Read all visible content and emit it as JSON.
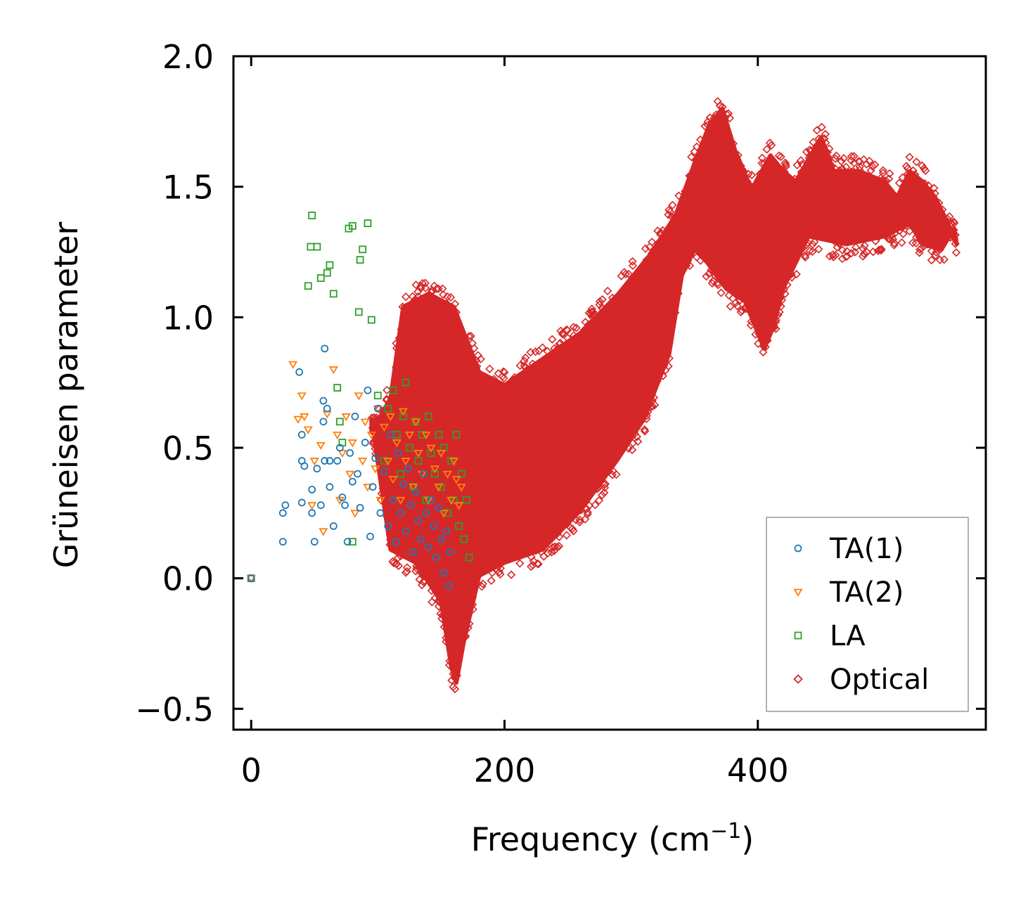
{
  "chart_data": {
    "type": "scatter",
    "title": "",
    "xlabel": "Frequency (cm",
    "xlabel_sup": "−1",
    "xlabel_close": ")",
    "ylabel": "Grüneisen parameter",
    "xlim": [
      -14,
      580
    ],
    "ylim": [
      -0.58,
      2.0
    ],
    "xticks": [
      0,
      200,
      400
    ],
    "xtick_labels": [
      "0",
      "200",
      "400"
    ],
    "yticks": [
      -0.5,
      0.0,
      0.5,
      1.0,
      1.5,
      2.0
    ],
    "ytick_labels": [
      "−0.5",
      "0.0",
      "0.5",
      "1.0",
      "1.5",
      "2.0"
    ],
    "legend_position": "lower-right",
    "series": [
      {
        "name": "TA(1)",
        "marker": "circle",
        "color": "#1f77b4",
        "points": [
          [
            0,
            0
          ],
          [
            25,
            0.14
          ],
          [
            27,
            0.28
          ],
          [
            25,
            0.25
          ],
          [
            38,
            0.79
          ],
          [
            40,
            0.55
          ],
          [
            40,
            0.45
          ],
          [
            42,
            0.43
          ],
          [
            40,
            0.29
          ],
          [
            48,
            0.34
          ],
          [
            48,
            0.25
          ],
          [
            50,
            0.14
          ],
          [
            52,
            0.42
          ],
          [
            55,
            0.28
          ],
          [
            57,
            0.68
          ],
          [
            58,
            0.88
          ],
          [
            57,
            0.6
          ],
          [
            58,
            0.45
          ],
          [
            60,
            0.65
          ],
          [
            62,
            0.45
          ],
          [
            62,
            0.35
          ],
          [
            65,
            0.2
          ],
          [
            68,
            0.45
          ],
          [
            70,
            0.5
          ],
          [
            72,
            0.31
          ],
          [
            74,
            0.28
          ],
          [
            76,
            0.14
          ],
          [
            78,
            0.48
          ],
          [
            80,
            0.37
          ],
          [
            82,
            0.62
          ],
          [
            84,
            0.4
          ],
          [
            86,
            0.27
          ],
          [
            90,
            0.52
          ],
          [
            92,
            0.72
          ],
          [
            94,
            0.16
          ],
          [
            96,
            0.35
          ],
          [
            98,
            0.46
          ],
          [
            100,
            0.65
          ],
          [
            102,
            0.25
          ],
          [
            105,
            0.41
          ],
          [
            108,
            0.2
          ],
          [
            110,
            0.55
          ],
          [
            112,
            0.3
          ],
          [
            114,
            0.14
          ],
          [
            116,
            0.48
          ],
          [
            118,
            0.25
          ],
          [
            120,
            0.36
          ],
          [
            122,
            0.18
          ],
          [
            124,
            0.42
          ],
          [
            126,
            0.28
          ],
          [
            128,
            0.1
          ],
          [
            130,
            0.33
          ],
          [
            132,
            0.22
          ],
          [
            134,
            0.15
          ],
          [
            136,
            0.4
          ],
          [
            138,
            0.25
          ],
          [
            140,
            0.12
          ],
          [
            142,
            0.3
          ],
          [
            144,
            0.2
          ],
          [
            146,
            0.08
          ],
          [
            148,
            0.27
          ],
          [
            150,
            0.15
          ],
          [
            152,
            0.02
          ],
          [
            154,
            0.18
          ],
          [
            156,
            -0.03
          ],
          [
            157,
            0.1
          ]
        ]
      },
      {
        "name": "TA(2)",
        "marker": "triangle-down",
        "color": "#ff7f0e",
        "points": [
          [
            0,
            0
          ],
          [
            33,
            0.82
          ],
          [
            37,
            0.61
          ],
          [
            40,
            0.7
          ],
          [
            42,
            0.62
          ],
          [
            45,
            0.57
          ],
          [
            48,
            0.28
          ],
          [
            50,
            0.45
          ],
          [
            55,
            0.51
          ],
          [
            57,
            0.18
          ],
          [
            60,
            0.63
          ],
          [
            65,
            0.8
          ],
          [
            68,
            0.55
          ],
          [
            70,
            0.3
          ],
          [
            72,
            0.48
          ],
          [
            75,
            0.62
          ],
          [
            78,
            0.4
          ],
          [
            80,
            0.52
          ],
          [
            82,
            0.25
          ],
          [
            85,
            0.7
          ],
          [
            88,
            0.45
          ],
          [
            90,
            0.6
          ],
          [
            92,
            0.35
          ],
          [
            95,
            0.55
          ],
          [
            98,
            0.42
          ],
          [
            100,
            0.65
          ],
          [
            102,
            0.3
          ],
          [
            105,
            0.58
          ],
          [
            108,
            0.45
          ],
          [
            110,
            0.62
          ],
          [
            112,
            0.38
          ],
          [
            115,
            0.52
          ],
          [
            118,
            0.3
          ],
          [
            120,
            0.64
          ],
          [
            122,
            0.45
          ],
          [
            125,
            0.55
          ],
          [
            128,
            0.35
          ],
          [
            130,
            0.6
          ],
          [
            132,
            0.48
          ],
          [
            135,
            0.4
          ],
          [
            138,
            0.55
          ],
          [
            140,
            0.3
          ],
          [
            142,
            0.5
          ],
          [
            145,
            0.42
          ],
          [
            148,
            0.35
          ],
          [
            150,
            0.48
          ],
          [
            152,
            0.25
          ],
          [
            155,
            0.4
          ],
          [
            158,
            0.3
          ],
          [
            160,
            0.45
          ],
          [
            162,
            0.38
          ],
          [
            164,
            0.28
          ],
          [
            166,
            0.35
          ]
        ]
      },
      {
        "name": "LA",
        "marker": "square",
        "color": "#2ca02c",
        "points": [
          [
            0,
            0
          ],
          [
            45,
            1.12
          ],
          [
            47,
            1.27
          ],
          [
            48,
            1.39
          ],
          [
            52,
            1.27
          ],
          [
            55,
            1.15
          ],
          [
            60,
            1.17
          ],
          [
            62,
            1.2
          ],
          [
            65,
            1.09
          ],
          [
            68,
            0.73
          ],
          [
            70,
            0.6
          ],
          [
            72,
            0.52
          ],
          [
            77,
            1.34
          ],
          [
            80,
            1.35
          ],
          [
            80,
            0.14
          ],
          [
            85,
            1.02
          ],
          [
            86,
            1.22
          ],
          [
            88,
            1.26
          ],
          [
            92,
            1.36
          ],
          [
            95,
            0.99
          ],
          [
            100,
            0.7
          ],
          [
            105,
            0.45
          ],
          [
            108,
            0.65
          ],
          [
            112,
            0.72
          ],
          [
            115,
            0.55
          ],
          [
            118,
            0.4
          ],
          [
            120,
            0.62
          ],
          [
            122,
            0.75
          ],
          [
            125,
            0.5
          ],
          [
            128,
            0.35
          ],
          [
            130,
            0.6
          ],
          [
            132,
            0.45
          ],
          [
            135,
            0.55
          ],
          [
            138,
            0.3
          ],
          [
            140,
            0.62
          ],
          [
            142,
            0.48
          ],
          [
            145,
            0.4
          ],
          [
            148,
            0.55
          ],
          [
            150,
            0.35
          ],
          [
            152,
            0.5
          ],
          [
            155,
            0.25
          ],
          [
            158,
            0.45
          ],
          [
            160,
            0.3
          ],
          [
            162,
            0.55
          ],
          [
            164,
            0.2
          ],
          [
            166,
            0.4
          ],
          [
            168,
            0.15
          ],
          [
            170,
            0.3
          ],
          [
            172,
            0.08
          ]
        ]
      },
      {
        "name": "Optical",
        "marker": "diamond",
        "color": "#d62728"
      }
    ],
    "optical_band": {
      "centerline": [
        [
          95,
          0.62
        ],
        [
          100,
          0.6
        ],
        [
          120,
          0.5
        ],
        [
          140,
          0.4
        ],
        [
          155,
          0.25
        ],
        [
          160,
          0.1
        ],
        [
          165,
          -0.02
        ],
        [
          170,
          0.0
        ],
        [
          180,
          0.05
        ],
        [
          200,
          0.25
        ],
        [
          220,
          0.38
        ],
        [
          250,
          0.55
        ],
        [
          280,
          0.7
        ],
        [
          300,
          0.85
        ],
        [
          320,
          1.0
        ],
        [
          335,
          1.2
        ],
        [
          350,
          1.5
        ],
        [
          360,
          1.58
        ],
        [
          370,
          1.55
        ],
        [
          380,
          1.42
        ],
        [
          390,
          1.4
        ],
        [
          400,
          1.35
        ],
        [
          410,
          1.38
        ],
        [
          420,
          1.45
        ],
        [
          440,
          1.42
        ],
        [
          460,
          1.48
        ],
        [
          480,
          1.45
        ],
        [
          500,
          1.4
        ],
        [
          520,
          1.45
        ],
        [
          530,
          1.42
        ],
        [
          540,
          1.38
        ],
        [
          555,
          1.32
        ]
      ],
      "upper": [
        [
          95,
          0.62
        ],
        [
          110,
          0.75
        ],
        [
          120,
          1.1
        ],
        [
          140,
          1.15
        ],
        [
          160,
          1.1
        ],
        [
          180,
          0.85
        ],
        [
          200,
          0.8
        ],
        [
          230,
          0.9
        ],
        [
          260,
          1.0
        ],
        [
          290,
          1.15
        ],
        [
          315,
          1.3
        ],
        [
          335,
          1.45
        ],
        [
          350,
          1.65
        ],
        [
          362,
          1.8
        ],
        [
          372,
          1.86
        ],
        [
          382,
          1.7
        ],
        [
          395,
          1.55
        ],
        [
          410,
          1.68
        ],
        [
          420,
          1.62
        ],
        [
          430,
          1.58
        ],
        [
          450,
          1.75
        ],
        [
          460,
          1.62
        ],
        [
          480,
          1.62
        ],
        [
          500,
          1.58
        ],
        [
          510,
          1.52
        ],
        [
          520,
          1.62
        ],
        [
          530,
          1.58
        ],
        [
          540,
          1.52
        ],
        [
          550,
          1.42
        ],
        [
          557,
          1.34
        ]
      ],
      "lower": [
        [
          95,
          0.55
        ],
        [
          110,
          0.05
        ],
        [
          130,
          0.0
        ],
        [
          150,
          -0.15
        ],
        [
          158,
          -0.4
        ],
        [
          162,
          -0.46
        ],
        [
          168,
          -0.3
        ],
        [
          180,
          -0.05
        ],
        [
          200,
          0.0
        ],
        [
          230,
          0.05
        ],
        [
          260,
          0.2
        ],
        [
          290,
          0.4
        ],
        [
          310,
          0.55
        ],
        [
          330,
          0.8
        ],
        [
          340,
          1.1
        ],
        [
          350,
          1.2
        ],
        [
          360,
          1.15
        ],
        [
          375,
          1.05
        ],
        [
          390,
          1.0
        ],
        [
          405,
          0.82
        ],
        [
          412,
          0.9
        ],
        [
          420,
          1.05
        ],
        [
          440,
          1.25
        ],
        [
          470,
          1.22
        ],
        [
          500,
          1.25
        ],
        [
          520,
          1.3
        ],
        [
          530,
          1.22
        ],
        [
          545,
          1.2
        ],
        [
          555,
          1.28
        ]
      ]
    }
  }
}
